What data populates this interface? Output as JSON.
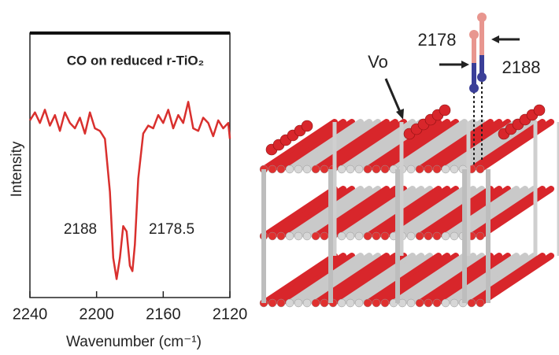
{
  "chart_data": {
    "type": "line",
    "title": "CO on reduced r-TiO₂",
    "x_label": "Wavenumber (cm⁻¹)",
    "y_label": "Intensity",
    "x": [
      2240,
      2237,
      2234,
      2231,
      2228,
      2225,
      2222,
      2219,
      2216,
      2213,
      2210,
      2207,
      2204,
      2201,
      2198,
      2195,
      2192,
      2190,
      2188,
      2186,
      2184,
      2182,
      2180,
      2178.5,
      2177,
      2175,
      2172,
      2169,
      2166,
      2163,
      2160,
      2157,
      2154,
      2151,
      2148,
      2145,
      2142,
      2139,
      2136,
      2133,
      2130,
      2127,
      2124,
      2121,
      2120
    ],
    "values": [
      67,
      70,
      66,
      71,
      65,
      69,
      63,
      70,
      66,
      64,
      68,
      62,
      70,
      64,
      63,
      60,
      40,
      15,
      7,
      15,
      27,
      25,
      12,
      10,
      20,
      45,
      62,
      65,
      64,
      69,
      66,
      71,
      64,
      69,
      66,
      74,
      64,
      63,
      68,
      66,
      61,
      67,
      64,
      66,
      60
    ],
    "color": "#d9302e",
    "xlim": [
      2240,
      2120
    ],
    "xticks": [
      2240,
      2200,
      2160,
      2120
    ],
    "ylim": [
      0,
      100
    ],
    "annotations": [
      "2188",
      "2178.5"
    ]
  },
  "illustration": {
    "vacancy_label": "Vo",
    "co_labels": [
      "2178",
      "2188"
    ]
  }
}
